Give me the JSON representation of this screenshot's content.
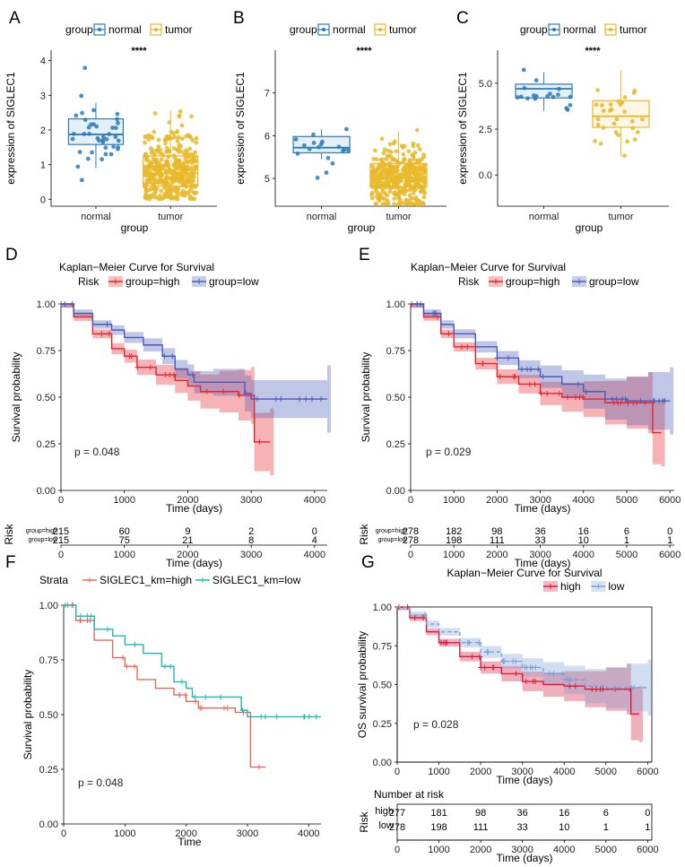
{
  "colors": {
    "normal": "#2b7bba",
    "tumor": "#e8b82a",
    "high": "#e8232a",
    "low": "#4a5bb8",
    "f_high": "#e66a5e",
    "f_low": "#1fb8b6",
    "g_high": "#d81b3c",
    "g_low": "#7b9fd6"
  },
  "chart_data": [
    {
      "id": "A",
      "type": "box",
      "panel_label": "A",
      "legend_title": "group",
      "legend": [
        "normal",
        "tumor"
      ],
      "significance": "****",
      "xlabel": "group",
      "ylabel": "expression of SIGLEC1",
      "categories": [
        "normal",
        "tumor"
      ],
      "ylim": [
        -0.2,
        4.3
      ],
      "yticks": [
        0,
        1,
        2,
        3,
        4
      ],
      "boxes": [
        {
          "q1": 1.58,
          "median": 1.87,
          "q3": 2.32,
          "min": 0.9,
          "max": 2.78
        },
        {
          "q1": 0.38,
          "median": 0.75,
          "q3": 1.25,
          "min": 0.0,
          "max": 2.55
        }
      ]
    },
    {
      "id": "B",
      "type": "box",
      "panel_label": "B",
      "legend_title": "group",
      "legend": [
        "normal",
        "tumor"
      ],
      "significance": "****",
      "xlabel": "group",
      "ylabel": "expression of SIGLEC1",
      "categories": [
        "normal",
        "tumor"
      ],
      "ylim": [
        4.35,
        8.0
      ],
      "yticks": [
        5,
        6,
        7
      ],
      "boxes": [
        {
          "q1": 5.6,
          "median": 5.72,
          "q3": 5.98,
          "min": 5.45,
          "max": 6.15
        },
        {
          "q1": 4.8,
          "median": 5.02,
          "q3": 5.35,
          "min": 4.38,
          "max": 6.1
        }
      ]
    },
    {
      "id": "C",
      "type": "box",
      "panel_label": "C",
      "legend_title": "group",
      "legend": [
        "normal",
        "tumor"
      ],
      "significance": "****",
      "xlabel": "group",
      "ylabel": "expression of SIGLEC1",
      "categories": [
        "normal",
        "tumor"
      ],
      "ylim": [
        -1.7,
        6.8
      ],
      "yticks": [
        0.0,
        2.5,
        5.0
      ],
      "ytick_labels": [
        "0.0",
        "2.5",
        "5.0"
      ],
      "boxes": [
        {
          "q1": 4.2,
          "median": 4.7,
          "q3": 4.95,
          "min": 3.5,
          "max": 5.6
        },
        {
          "q1": 2.6,
          "median": 3.2,
          "q3": 4.05,
          "min": 1.0,
          "max": 5.7
        }
      ]
    },
    {
      "id": "D",
      "type": "line",
      "panel_label": "D",
      "title": "Kaplan−Meier Curve for Survival",
      "legend_title": "Risk",
      "legend": [
        "group=high",
        "group=low"
      ],
      "xlabel": "Time (days)",
      "ylabel": "Survival probability",
      "xlim": [
        0,
        4200
      ],
      "xticks": [
        0,
        1000,
        2000,
        3000,
        4000
      ],
      "yticks": [
        0,
        0.25,
        0.5,
        0.75,
        1
      ],
      "ytick_labels": [
        "0.00",
        "0.25",
        "0.50",
        "0.75",
        "1.00"
      ],
      "pvalue": "p = 0.048",
      "series": [
        {
          "name": "group=high",
          "x": [
            0,
            200,
            500,
            800,
            1000,
            1200,
            1500,
            1800,
            2000,
            2200,
            2500,
            2800,
            3000,
            3050,
            3300
          ],
          "y": [
            1,
            0.93,
            0.84,
            0.76,
            0.72,
            0.66,
            0.62,
            0.59,
            0.56,
            0.53,
            0.53,
            0.51,
            0.51,
            0.26,
            0.26
          ]
        },
        {
          "name": "group=low",
          "x": [
            0,
            200,
            500,
            800,
            1000,
            1300,
            1600,
            1800,
            2000,
            2100,
            2400,
            2900,
            3000,
            4200
          ],
          "y": [
            1,
            0.95,
            0.89,
            0.86,
            0.82,
            0.78,
            0.72,
            0.65,
            0.62,
            0.58,
            0.58,
            0.52,
            0.49,
            0.49
          ]
        }
      ],
      "risk_table": {
        "label": "Risk",
        "rows": [
          {
            "name": "group=high",
            "values": [
              "215",
              "60",
              "9",
              "2",
              "0"
            ]
          },
          {
            "name": "group=low",
            "values": [
              "215",
              "75",
              "21",
              "8",
              "4"
            ]
          }
        ],
        "xlabel": "Time (days)"
      }
    },
    {
      "id": "E",
      "type": "line",
      "panel_label": "E",
      "title": "Kaplan−Meier Curve for Survival",
      "legend_title": "Risk",
      "legend": [
        "group=high",
        "group=low"
      ],
      "xlabel": "Time (days)",
      "ylabel": "Survival probability",
      "xlim": [
        0,
        6100
      ],
      "xticks": [
        0,
        1000,
        2000,
        3000,
        4000,
        5000,
        6000
      ],
      "yticks": [
        0,
        0.25,
        0.5,
        0.75,
        1
      ],
      "ytick_labels": [
        "0.00",
        "0.25",
        "0.50",
        "0.75",
        "1.00"
      ],
      "pvalue": "p = 0.029",
      "series": [
        {
          "name": "group=high",
          "x": [
            0,
            300,
            700,
            1000,
            1500,
            2000,
            2500,
            3000,
            3500,
            4000,
            4500,
            5000,
            5500,
            5600,
            5800
          ],
          "y": [
            1,
            0.93,
            0.84,
            0.77,
            0.68,
            0.61,
            0.57,
            0.52,
            0.5,
            0.49,
            0.47,
            0.47,
            0.47,
            0.31,
            0.31
          ]
        },
        {
          "name": "group=low",
          "x": [
            0,
            300,
            700,
            1000,
            1500,
            2000,
            2500,
            3000,
            3500,
            4000,
            4500,
            5000,
            5500,
            6000
          ],
          "y": [
            1,
            0.95,
            0.89,
            0.84,
            0.77,
            0.71,
            0.65,
            0.61,
            0.57,
            0.53,
            0.49,
            0.48,
            0.48,
            0.48
          ]
        }
      ],
      "risk_table": {
        "label": "Risk",
        "rows": [
          {
            "name": "group=high",
            "values": [
              "278",
              "182",
              "98",
              "36",
              "16",
              "6",
              "0"
            ]
          },
          {
            "name": "group=low",
            "values": [
              "278",
              "198",
              "111",
              "33",
              "10",
              "1",
              "1"
            ]
          }
        ],
        "xlabel": "Time (days)"
      }
    },
    {
      "id": "F",
      "type": "line",
      "panel_label": "F",
      "legend_title": "Strata",
      "legend": [
        "SIGLEC1_km=high",
        "SIGLEC1_km=low"
      ],
      "xlabel": "Time",
      "ylabel": "Survival probability",
      "xlim": [
        0,
        4200
      ],
      "xticks": [
        0,
        1000,
        2000,
        3000,
        4000
      ],
      "yticks": [
        0,
        0.25,
        0.5,
        0.75,
        1
      ],
      "ytick_labels": [
        "0.00",
        "0.25",
        "0.50",
        "0.75",
        "1.00"
      ],
      "pvalue": "p = 0.048",
      "series": [
        {
          "name": "SIGLEC1_km=high",
          "x": [
            0,
            200,
            500,
            800,
            1000,
            1200,
            1500,
            1800,
            2000,
            2200,
            2500,
            2800,
            3000,
            3050,
            3300
          ],
          "y": [
            1,
            0.93,
            0.84,
            0.76,
            0.72,
            0.66,
            0.62,
            0.59,
            0.56,
            0.53,
            0.53,
            0.51,
            0.51,
            0.26,
            0.26
          ]
        },
        {
          "name": "SIGLEC1_km=low",
          "x": [
            0,
            200,
            500,
            800,
            1000,
            1300,
            1600,
            1800,
            2000,
            2100,
            2400,
            2900,
            3000,
            4200
          ],
          "y": [
            1,
            0.95,
            0.89,
            0.86,
            0.82,
            0.78,
            0.72,
            0.65,
            0.62,
            0.58,
            0.58,
            0.52,
            0.49,
            0.49
          ]
        }
      ]
    },
    {
      "id": "G",
      "type": "line",
      "panel_label": "G",
      "title": "Kaplan−Meier Curve for Survival",
      "legend": [
        "high",
        "low"
      ],
      "xlabel": "Time (days)",
      "ylabel": "OS survival probability",
      "xlim": [
        0,
        6100
      ],
      "xticks": [
        0,
        1000,
        2000,
        3000,
        4000,
        5000,
        6000
      ],
      "yticks": [
        0,
        0.25,
        0.5,
        0.75,
        1
      ],
      "ytick_labels": [
        "0.00",
        "0.25",
        "0.50",
        "0.75",
        "1.00"
      ],
      "pvalue": "p = 0.028",
      "series": [
        {
          "name": "high",
          "x": [
            0,
            300,
            700,
            1000,
            1500,
            2000,
            2500,
            3000,
            3500,
            4000,
            4500,
            5000,
            5500,
            5600,
            5800
          ],
          "y": [
            1,
            0.93,
            0.84,
            0.77,
            0.68,
            0.61,
            0.57,
            0.52,
            0.5,
            0.49,
            0.47,
            0.47,
            0.47,
            0.31,
            0.31
          ]
        },
        {
          "name": "low",
          "x": [
            0,
            300,
            700,
            1000,
            1500,
            2000,
            2500,
            3000,
            3500,
            4000,
            4500,
            5000,
            5500,
            6000
          ],
          "y": [
            1,
            0.95,
            0.89,
            0.84,
            0.77,
            0.71,
            0.65,
            0.61,
            0.57,
            0.53,
            0.49,
            0.48,
            0.48,
            0.48
          ]
        }
      ],
      "risk_table": {
        "title": "Number at risk",
        "label": "Risk",
        "rows": [
          {
            "name": "high",
            "values": [
              "277",
              "181",
              "98",
              "36",
              "16",
              "6",
              "0"
            ]
          },
          {
            "name": "low",
            "values": [
              "278",
              "198",
              "111",
              "33",
              "10",
              "1",
              "1"
            ]
          }
        ],
        "xlabel": "Time (days)"
      }
    }
  ]
}
